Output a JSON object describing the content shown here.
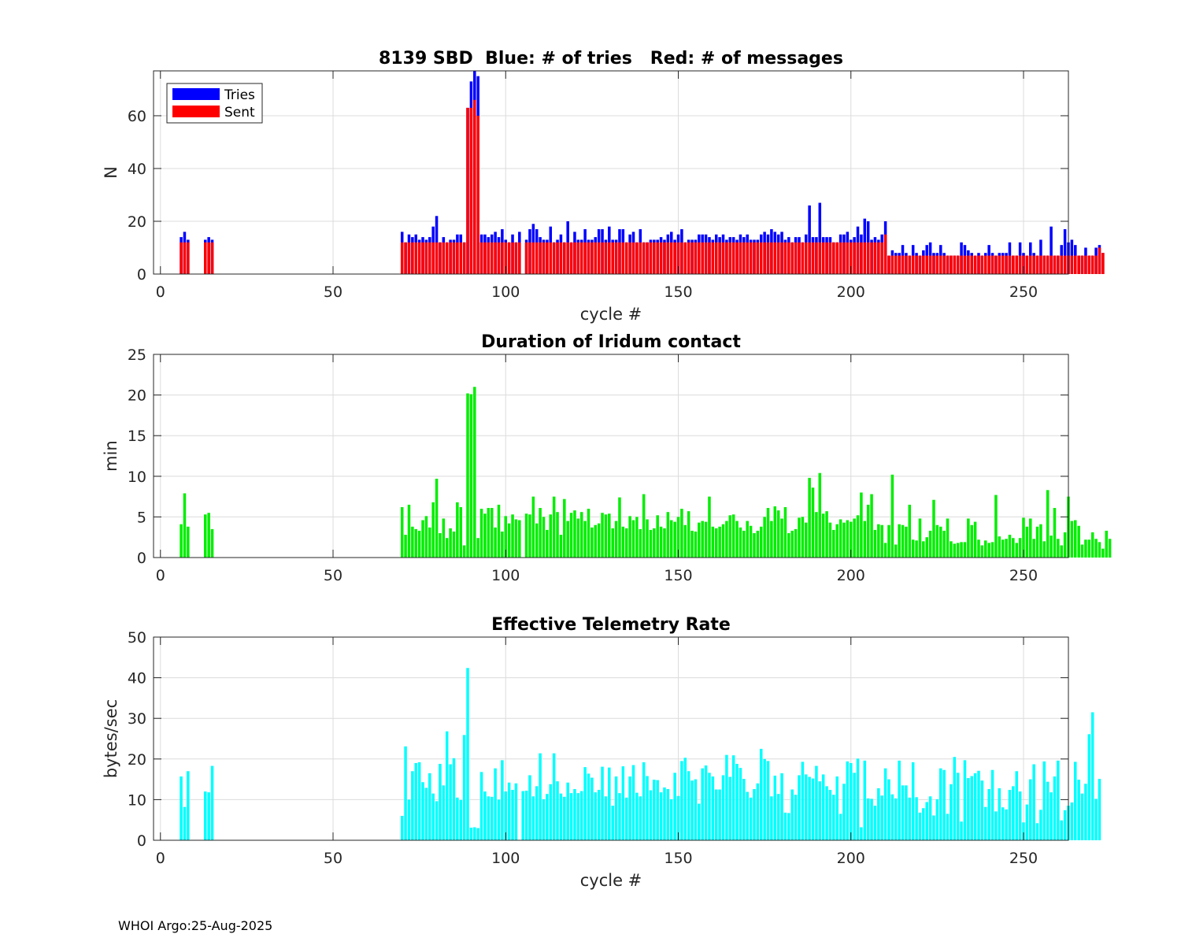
{
  "footer": "WHOI Argo:25-Aug-2025",
  "colors": {
    "tries": "#0000ff",
    "sent": "#ff0000",
    "duration": "#00ee00",
    "rate": "#00ffff"
  },
  "chart_data": [
    {
      "type": "bar",
      "title": "8139 SBD  Blue: # of tries   Red: # of messages",
      "xlabel": "cycle #",
      "ylabel": "N",
      "xlim": [
        -2,
        263
      ],
      "ylim": [
        0,
        77
      ],
      "xticks": [
        0,
        50,
        100,
        150,
        200,
        250
      ],
      "yticks": [
        0,
        20,
        40,
        60
      ],
      "legend": {
        "position": "top-left",
        "entries": [
          "Tries",
          "Sent"
        ]
      },
      "start_cycle": 6,
      "series": [
        {
          "name": "Tries",
          "values": [
            14,
            16,
            13,
            0,
            0,
            0,
            0,
            13,
            14,
            13,
            0,
            0,
            0,
            0,
            0,
            0,
            0,
            0,
            0,
            0,
            0,
            0,
            0,
            0,
            0,
            0,
            0,
            0,
            0,
            0,
            0,
            0,
            0,
            0,
            0,
            0,
            0,
            0,
            0,
            0,
            0,
            0,
            0,
            0,
            0,
            0,
            0,
            0,
            0,
            0,
            0,
            0,
            0,
            0,
            0,
            0,
            0,
            0,
            0,
            0,
            0,
            0,
            0,
            0,
            16,
            12,
            15,
            14,
            15,
            13,
            14,
            13,
            14,
            18,
            22,
            12,
            14,
            12,
            13,
            13,
            15,
            15,
            12,
            63,
            73,
            77,
            75,
            15,
            15,
            14,
            15,
            16,
            14,
            17,
            13,
            12,
            15,
            12,
            16,
            0,
            13,
            17,
            19,
            17,
            14,
            13,
            13,
            18,
            12,
            13,
            15,
            12,
            20,
            12,
            16,
            13,
            13,
            17,
            13,
            13,
            14,
            17,
            17,
            13,
            18,
            13,
            13,
            17,
            17,
            12,
            15,
            16,
            12,
            17,
            12,
            12,
            13,
            13,
            13,
            14,
            13,
            15,
            16,
            13,
            15,
            17,
            12,
            13,
            13,
            13,
            15,
            15,
            15,
            14,
            13,
            15,
            14,
            15,
            13,
            14,
            14,
            13,
            15,
            14,
            15,
            13,
            13,
            13,
            15,
            16,
            15,
            17,
            16,
            15,
            16,
            13,
            14,
            12,
            14,
            14,
            12,
            15,
            26,
            14,
            14,
            27,
            14,
            14,
            14,
            12,
            12,
            15,
            15,
            16,
            13,
            14,
            18,
            15,
            21,
            20,
            13,
            14,
            13,
            15,
            20,
            7,
            9,
            8,
            8,
            11,
            8,
            7,
            11,
            8,
            7,
            9,
            11,
            12,
            8,
            8,
            11,
            8,
            7,
            7,
            7,
            7,
            12,
            11,
            9,
            8,
            7,
            8,
            7,
            8,
            11,
            8,
            7,
            8,
            8,
            8,
            12,
            7,
            7,
            12,
            8,
            7,
            12,
            8,
            7,
            13,
            7,
            7,
            18,
            7,
            7,
            11,
            17,
            12,
            13,
            11,
            7,
            7,
            10,
            7,
            7,
            10,
            11,
            8
          ]
        },
        {
          "name": "Sent",
          "values": [
            12,
            12,
            12,
            0,
            0,
            0,
            0,
            12,
            12,
            12,
            0,
            0,
            0,
            0,
            0,
            0,
            0,
            0,
            0,
            0,
            0,
            0,
            0,
            0,
            0,
            0,
            0,
            0,
            0,
            0,
            0,
            0,
            0,
            0,
            0,
            0,
            0,
            0,
            0,
            0,
            0,
            0,
            0,
            0,
            0,
            0,
            0,
            0,
            0,
            0,
            0,
            0,
            0,
            0,
            0,
            0,
            0,
            0,
            0,
            0,
            0,
            0,
            0,
            0,
            12,
            12,
            12,
            12,
            12,
            12,
            12,
            12,
            12,
            12,
            12,
            12,
            12,
            12,
            12,
            12,
            12,
            12,
            12,
            63,
            63,
            66,
            60,
            12,
            12,
            12,
            12,
            12,
            12,
            12,
            12,
            12,
            12,
            12,
            12,
            0,
            12,
            12,
            12,
            12,
            12,
            12,
            12,
            12,
            12,
            12,
            12,
            12,
            12,
            12,
            12,
            12,
            12,
            12,
            12,
            12,
            12,
            12,
            12,
            12,
            12,
            12,
            12,
            12,
            12,
            12,
            12,
            12,
            12,
            12,
            12,
            12,
            12,
            12,
            12,
            12,
            12,
            12,
            12,
            12,
            12,
            12,
            12,
            12,
            12,
            12,
            12,
            12,
            12,
            12,
            12,
            12,
            12,
            12,
            12,
            12,
            12,
            12,
            12,
            12,
            12,
            12,
            12,
            12,
            12,
            12,
            12,
            12,
            12,
            12,
            12,
            12,
            12,
            12,
            12,
            12,
            12,
            12,
            12,
            12,
            12,
            12,
            12,
            12,
            12,
            12,
            12,
            12,
            12,
            12,
            12,
            12,
            12,
            12,
            12,
            12,
            12,
            12,
            12,
            12,
            15,
            7,
            7,
            7,
            7,
            7,
            7,
            7,
            7,
            7,
            7,
            7,
            7,
            7,
            7,
            7,
            7,
            7,
            7,
            7,
            7,
            7,
            7,
            7,
            7,
            7,
            7,
            7,
            7,
            7,
            7,
            7,
            7,
            7,
            7,
            7,
            7,
            7,
            7,
            7,
            7,
            7,
            7,
            7,
            7,
            7,
            7,
            7,
            7,
            7,
            7,
            7,
            7,
            7,
            7,
            7,
            7,
            7,
            7,
            7,
            7,
            7,
            10,
            8
          ]
        }
      ]
    },
    {
      "type": "bar",
      "title": "Duration of Iridum contact",
      "xlabel": "",
      "ylabel": "min",
      "xlim": [
        -2,
        263
      ],
      "ylim": [
        0,
        25
      ],
      "xticks": [
        0,
        50,
        100,
        150,
        200,
        250
      ],
      "yticks": [
        0,
        5,
        10,
        15,
        20,
        25
      ],
      "start_cycle": 6,
      "series": [
        {
          "name": "Duration",
          "values": [
            4.1,
            7.9,
            3.8,
            0,
            0,
            0,
            0,
            5.3,
            5.5,
            3.5,
            0,
            0,
            0,
            0,
            0,
            0,
            0,
            0,
            0,
            0,
            0,
            0,
            0,
            0,
            0,
            0,
            0,
            0,
            0,
            0,
            0,
            0,
            0,
            0,
            0,
            0,
            0,
            0,
            0,
            0,
            0,
            0,
            0,
            0,
            0,
            0,
            0,
            0,
            0,
            0,
            0,
            0,
            0,
            0,
            0,
            0,
            0,
            0,
            0,
            0,
            0,
            0,
            0,
            0,
            6.2,
            2.8,
            6.5,
            3.8,
            3.5,
            3.3,
            4.6,
            5.1,
            3.7,
            6.8,
            9.7,
            3.0,
            4.8,
            2.4,
            3.6,
            3.2,
            6.8,
            6.2,
            1.5,
            20.2,
            20.1,
            21.0,
            2.4,
            6.0,
            5.4,
            6.1,
            6.1,
            3.7,
            6.5,
            3.2,
            5.1,
            4.2,
            5.3,
            4.7,
            4.6,
            0,
            5.4,
            5.3,
            7.5,
            4.2,
            6.1,
            5.0,
            3.4,
            5.3,
            7.5,
            5.6,
            2.8,
            7.2,
            4.5,
            5.5,
            5.8,
            4.8,
            5.6,
            4.5,
            6.0,
            3.7,
            4.0,
            4.2,
            5.5,
            5.3,
            5.4,
            3.6,
            4.5,
            7.4,
            3.8,
            3.6,
            5.1,
            4.6,
            5.0,
            3.5,
            7.8,
            4.7,
            3.4,
            3.6,
            5.2,
            3.8,
            3.6,
            5.6,
            4.6,
            4.4,
            5.0,
            6.0,
            4.0,
            5.7,
            3.3,
            3.2,
            4.3,
            4.5,
            4.4,
            7.5,
            3.8,
            3.6,
            3.8,
            4.1,
            4.5,
            5.2,
            5.3,
            4.5,
            3.7,
            3.3,
            4.5,
            3.9,
            3.0,
            3.3,
            3.8,
            5.0,
            6.1,
            4.5,
            6.3,
            5.8,
            4.8,
            6.2,
            3.0,
            3.3,
            3.5,
            4.9,
            5.0,
            4.3,
            9.8,
            8.6,
            5.6,
            10.4,
            5.4,
            5.7,
            4.3,
            3.4,
            4.1,
            4.7,
            4.3,
            4.6,
            4.4,
            4.8,
            5.2,
            8.0,
            4.5,
            6.5,
            7.8,
            3.4,
            4.1,
            4.0,
            1.8,
            4.0,
            10.2,
            1.6,
            4.1,
            4.0,
            3.8,
            6.5,
            2.2,
            2.1,
            4.8,
            2.0,
            2.5,
            3.3,
            7.1,
            4.0,
            3.8,
            3.3,
            4.8,
            2.0,
            1.7,
            1.8,
            1.9,
            1.9,
            4.8,
            4.0,
            4.4,
            2.2,
            1.5,
            2.1,
            1.8,
            1.9,
            7.7,
            2.6,
            2.2,
            2.3,
            2.8,
            2.4,
            1.8,
            2.4,
            4.9,
            3.8,
            4.8,
            2.3,
            3.8,
            4.1,
            2.0,
            8.3,
            2.7,
            6.1,
            2.3,
            1.5,
            3.1,
            7.5,
            4.5,
            4.6,
            3.9,
            1.6,
            2.2,
            2.2,
            3.1,
            2.3,
            1.9,
            1.1,
            3.3,
            2.3
          ]
        }
      ]
    },
    {
      "type": "bar",
      "title": "Effective Telemetry Rate",
      "xlabel": "cycle #",
      "ylabel": "bytes/sec",
      "xlim": [
        -2,
        263
      ],
      "ylim": [
        0,
        50
      ],
      "xticks": [
        0,
        50,
        100,
        150,
        200,
        250
      ],
      "yticks": [
        0,
        10,
        20,
        30,
        40,
        50
      ],
      "start_cycle": 6,
      "series": [
        {
          "name": "Rate",
          "values": [
            15.7,
            8.2,
            17.0,
            0,
            0,
            0,
            0,
            12.0,
            11.8,
            18.3,
            0,
            0,
            0,
            0,
            0,
            0,
            0,
            0,
            0,
            0,
            0,
            0,
            0,
            0,
            0,
            0,
            0,
            0,
            0,
            0,
            0,
            0,
            0,
            0,
            0,
            0,
            0,
            0,
            0,
            0,
            0,
            0,
            0,
            0,
            0,
            0,
            0,
            0,
            0,
            0,
            0,
            0,
            0,
            0,
            0,
            0,
            0,
            0,
            0,
            0,
            0,
            0,
            0,
            0,
            6.0,
            23.1,
            10.0,
            17.0,
            19.0,
            19.2,
            14.3,
            12.9,
            16.5,
            11.5,
            9.6,
            18.8,
            13.5,
            26.8,
            18.7,
            20.2,
            10.5,
            9.9,
            25.9,
            42.4,
            3.1,
            3.2,
            3.0,
            16.8,
            12.0,
            10.8,
            10.7,
            17.7,
            10.0,
            19.7,
            12.0,
            14.2,
            12.4,
            14.0,
            0,
            12.1,
            12.2,
            16.0,
            10.8,
            13.3,
            21.4,
            10.1,
            11.4,
            13.8,
            21.4,
            14.5,
            11.5,
            10.7,
            14.2,
            11.6,
            12.6,
            11.6,
            12.1,
            18.0,
            16.4,
            15.4,
            11.8,
            12.4,
            18.1,
            10.8,
            17.9,
            8.5,
            15.7,
            11.6,
            18.2,
            10.5,
            15.7,
            18.5,
            11.7,
            10.8,
            19.2,
            15.8,
            12.3,
            14.9,
            14.8,
            11.8,
            13.0,
            12.6,
            10.1,
            16.6,
            10.9,
            19.5,
            20.3,
            17.0,
            14.7,
            15.0,
            9.0,
            17.7,
            18.4,
            16.6,
            15.7,
            12.5,
            12.5,
            16.0,
            21.0,
            15.6,
            20.9,
            18.8,
            17.8,
            15.1,
            11.9,
            10.5,
            12.6,
            14.0,
            22.5,
            20.0,
            19.5,
            10.8,
            15.9,
            11.4,
            16.5,
            6.8,
            6.7,
            12.5,
            11.2,
            16.0,
            19.3,
            16.2,
            15.6,
            15.2,
            18.3,
            14.5,
            16.2,
            13.3,
            12.4,
            11.2,
            15.7,
            6.5,
            13.9,
            19.4,
            19.0,
            16.6,
            20.1,
            3.2,
            19.6,
            10.3,
            10.2,
            8.5,
            12.8,
            11.0,
            17.7,
            15.0,
            11.3,
            10.3,
            19.6,
            13.5,
            13.5,
            10.5,
            19.2,
            10.6,
            6.8,
            7.9,
            9.4,
            10.8,
            6.1,
            10.1,
            17.7,
            17.3,
            6.5,
            13.8,
            20.5,
            16.6,
            4.6,
            19.7,
            15.3,
            15.8,
            16.5,
            17.1,
            14.7,
            8.2,
            12.6,
            17.3,
            7.1,
            12.8,
            8.1,
            7.6,
            12.4,
            13.3,
            17.0,
            12.0,
            4.4,
            8.8,
            15.0,
            18.7,
            4.2,
            7.5,
            19.4,
            14.4,
            11.8,
            15.7,
            19.6,
            4.9,
            7.4,
            8.5,
            9.3,
            19.3,
            14.9,
            11.5,
            13.9,
            26.1,
            31.5,
            10.2,
            15.1
          ]
        }
      ]
    }
  ]
}
